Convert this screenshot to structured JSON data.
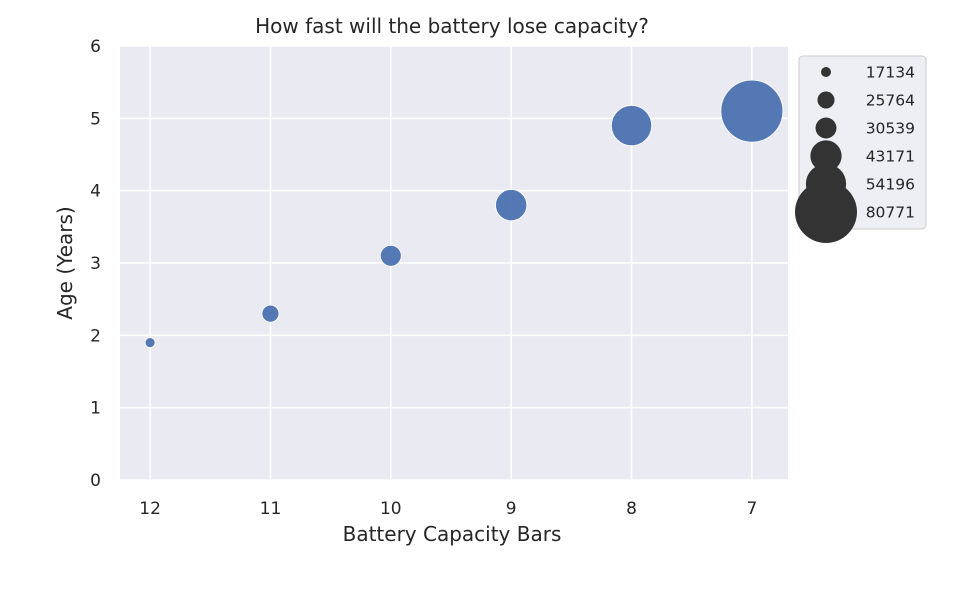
{
  "chart_data": {
    "type": "scatter",
    "title": "How fast will the battery lose capacity?",
    "xlabel": "Battery Capacity Bars",
    "ylabel": "Age (Years)",
    "x_ticks": [
      12,
      11,
      10,
      9,
      8,
      7
    ],
    "x_inverted": true,
    "xlim": [
      12.25,
      6.7
    ],
    "ylim": [
      0,
      6
    ],
    "y_ticks": [
      0,
      1,
      2,
      3,
      4,
      5,
      6
    ],
    "grid": true,
    "legend_position": "outside-top-right",
    "size_variable_colors": {
      "points": "#4c72b0",
      "legend_markers": "#333333"
    },
    "background_color": "#eaeaf2",
    "points": [
      {
        "x": 12,
        "y": 1.9,
        "size": 17134
      },
      {
        "x": 11,
        "y": 2.3,
        "size": 25764
      },
      {
        "x": 10,
        "y": 3.1,
        "size": 30539
      },
      {
        "x": 9,
        "y": 3.8,
        "size": 43171
      },
      {
        "x": 8,
        "y": 4.9,
        "size": 54196
      },
      {
        "x": 7,
        "y": 5.1,
        "size": 80771
      }
    ],
    "legend": [
      {
        "label": "17134",
        "size": 17134
      },
      {
        "label": "25764",
        "size": 25764
      },
      {
        "label": "30539",
        "size": 30539
      },
      {
        "label": "43171",
        "size": 43171
      },
      {
        "label": "54196",
        "size": 54196
      },
      {
        "label": "80771",
        "size": 80771
      }
    ]
  }
}
